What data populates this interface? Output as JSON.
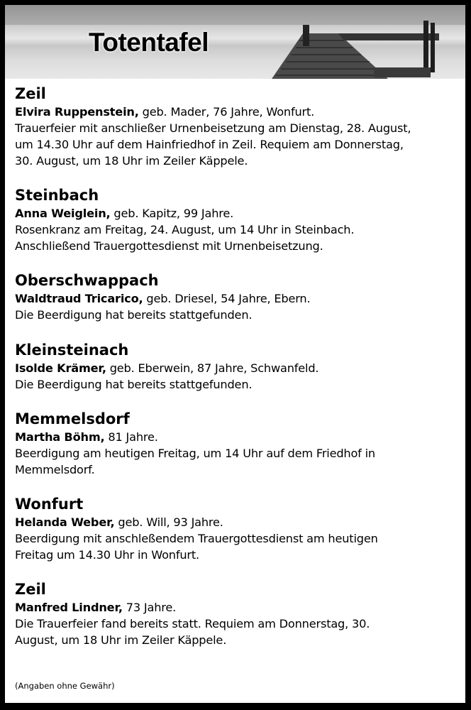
{
  "header": {
    "title": "Totentafel"
  },
  "entries": [
    {
      "place": "Zeil",
      "name": "Elvira Ruppenstein,",
      "info": " geb. Mader, 76 Jahre, Wonfurt.",
      "lines": [
        "Trauerfeier mit anschließer Urnenbeisetzung am Dienstag, 28. August,",
        "um 14.30 Uhr auf dem Hainfriedhof in Zeil. Requiem am Donnerstag,",
        "30. August, um 18 Uhr im Zeiler Käppele."
      ]
    },
    {
      "place": "Steinbach",
      "name": "Anna Weiglein,",
      "info": " geb. Kapitz, 99 Jahre.",
      "lines": [
        "Rosenkranz am Freitag, 24. August, um 14 Uhr in Steinbach.",
        "Anschließend Trauergottesdienst mit Urnenbeisetzung."
      ]
    },
    {
      "place": "Oberschwappach",
      "name": "Waldtraud Tricarico,",
      "info": " geb. Driesel, 54 Jahre, Ebern.",
      "lines": [
        "Die Beerdigung hat bereits stattgefunden."
      ]
    },
    {
      "place": "Kleinsteinach",
      "name": "Isolde Krämer,",
      "info": " geb. Eberwein, 87 Jahre, Schwanfeld.",
      "lines": [
        "Die Beerdigung hat bereits stattgefunden."
      ]
    },
    {
      "place": "Memmelsdorf",
      "name": "Martha Böhm,",
      "info": " 81 Jahre.",
      "lines": [
        "Beerdigung am heutigen Freitag, um 14 Uhr auf dem Friedhof in",
        "Memmelsdorf."
      ]
    },
    {
      "place": "Wonfurt",
      "name": "Helanda Weber,",
      "info": " geb. Will, 93 Jahre.",
      "lines": [
        "Beerdigung mit anschleßendem Trauergottesdienst am heutigen",
        "Freitag um 14.30 Uhr in Wonfurt."
      ]
    },
    {
      "place": "Zeil",
      "name": "Manfred Lindner,",
      "info": " 73 Jahre.",
      "lines": [
        "Die Trauerfeier fand bereits statt. Requiem am Donnerstag, 30.",
        "August, um 18 Uhr im Zeiler Käppele."
      ]
    }
  ],
  "footer": {
    "disclaimer": "(Angaben ohne Gewähr)"
  }
}
